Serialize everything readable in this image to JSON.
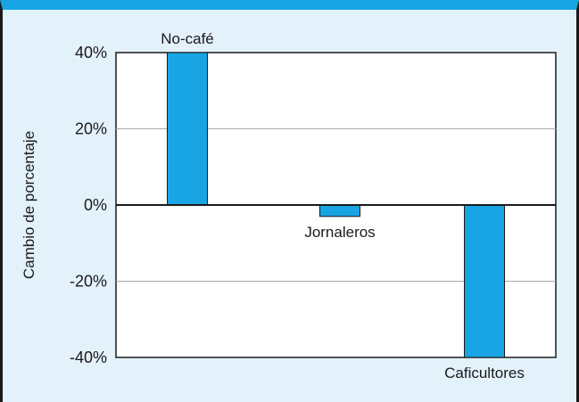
{
  "chart_data": {
    "type": "bar",
    "title": "",
    "xlabel": "",
    "ylabel": "Cambio de porcentaje",
    "categories": [
      "No-café",
      "Jornaleros",
      "Caficultores"
    ],
    "values": [
      40,
      -3,
      -40
    ],
    "ylim": [
      -40,
      40
    ],
    "yticks": [
      40,
      20,
      0,
      -20,
      -40
    ],
    "ytick_labels": [
      "40%",
      "20%",
      "0%",
      "-20%",
      "-40%"
    ],
    "grid": true,
    "bar_color": "#19a4e3"
  }
}
